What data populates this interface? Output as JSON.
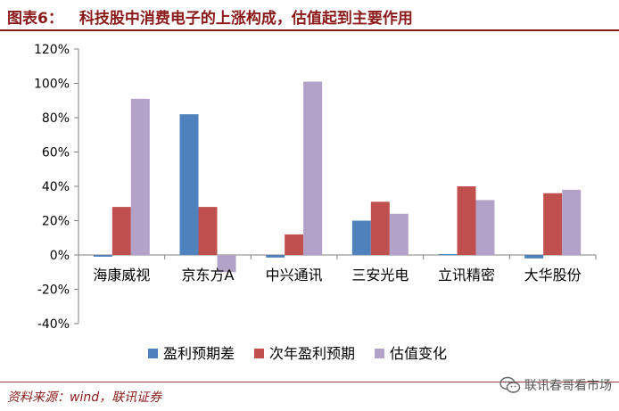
{
  "header": {
    "figure_label": "图表6：",
    "title": "科技股中消费电子的上涨构成，估值起到主要作用"
  },
  "footer": {
    "source": "资料来源：wind，联讯证券",
    "watermark_text": "联讯春哥看市场",
    "watermark_icon": "wechat-icon"
  },
  "chart_data": {
    "type": "bar",
    "categories": [
      "海康威视",
      "京东方A",
      "中兴通讯",
      "三安光电",
      "立讯精密",
      "大华股份"
    ],
    "series": [
      {
        "name": "盈利预期差",
        "color": "#4f81bd",
        "values": [
          -1,
          82,
          -1.5,
          20,
          0.5,
          -2
        ]
      },
      {
        "name": "次年盈利预期",
        "color": "#c0504d",
        "values": [
          28,
          28,
          12,
          31,
          40,
          36
        ]
      },
      {
        "name": "估值变化",
        "color": "#b3a2c7",
        "values": [
          91,
          -10,
          101,
          24,
          32,
          38
        ]
      }
    ],
    "ylim": [
      -40,
      120
    ],
    "yticks": [
      -40,
      -20,
      0,
      20,
      40,
      60,
      80,
      100,
      120
    ],
    "ytick_labels": [
      "-40%",
      "-20%",
      "0%",
      "20%",
      "40%",
      "60%",
      "80%",
      "100%",
      "120%"
    ],
    "grid": false,
    "legend_position": "bottom"
  }
}
